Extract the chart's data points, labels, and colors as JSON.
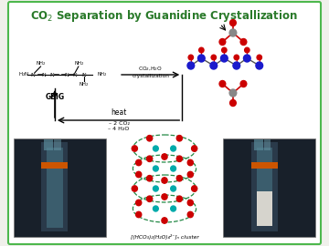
{
  "title": "CO$_2$ Separation by Guanidine Crystallization",
  "title_color": "#2a7a2a",
  "bg_color": "#ffffff",
  "border_color": "#4db84d",
  "fig_bg": "#f0f0eb",
  "gbig_label": "GBIG",
  "heat_label": "heat",
  "release_label": "– 2 CO₂\n– 4 H₂O",
  "cluster_label": "[(HCO₃)₂(H₂O)₄²⁻]ₙ cluster"
}
